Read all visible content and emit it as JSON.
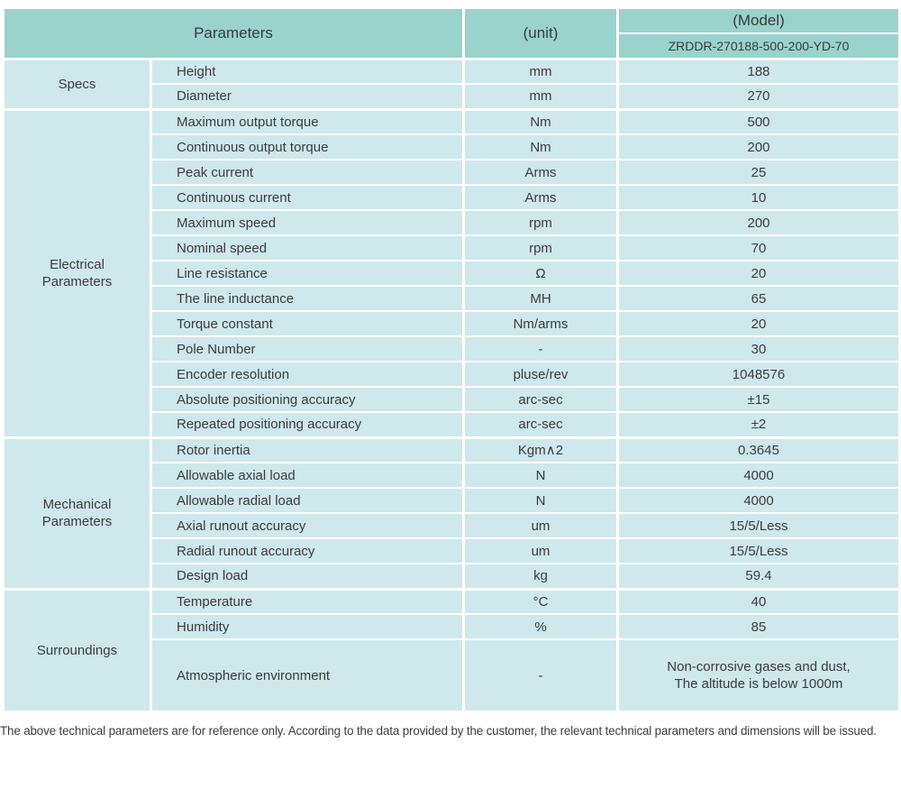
{
  "table": {
    "header": {
      "parameters_label": "Parameters",
      "unit_label": "(unit)",
      "model_label": "(Model)",
      "model_value": "ZRDDR-270188-500-200-YD-70"
    },
    "sections": [
      {
        "category": "Specs",
        "rows": [
          {
            "name": "Height",
            "unit": "mm",
            "value": "188"
          },
          {
            "name": "Diameter",
            "unit": "mm",
            "value": "270"
          }
        ]
      },
      {
        "category": "Electrical Parameters",
        "rows": [
          {
            "name": "Maximum output torque",
            "unit": "Nm",
            "value": "500"
          },
          {
            "name": "Continuous output torque",
            "unit": "Nm",
            "value": "200"
          },
          {
            "name": "Peak current",
            "unit": "Arms",
            "value": "25"
          },
          {
            "name": "Continuous current",
            "unit": "Arms",
            "value": "10"
          },
          {
            "name": "Maximum speed",
            "unit": "rpm",
            "value": "200"
          },
          {
            "name": "Nominal speed",
            "unit": "rpm",
            "value": "70"
          },
          {
            "name": "Line resistance",
            "unit": "Ω",
            "value": "20"
          },
          {
            "name": "The line inductance",
            "unit": "MH",
            "value": "65"
          },
          {
            "name": "Torque constant",
            "unit": "Nm/arms",
            "value": "20"
          },
          {
            "name": "Pole Number",
            "unit": "-",
            "value": "30"
          },
          {
            "name": "Encoder resolution",
            "unit": "pluse/rev",
            "value": "1048576"
          },
          {
            "name": "Absolute positioning accuracy",
            "unit": "arc-sec",
            "value": "±15"
          },
          {
            "name": "Repeated positioning accuracy",
            "unit": "arc-sec",
            "value": "±2"
          }
        ]
      },
      {
        "category": "Mechanical Parameters",
        "rows": [
          {
            "name": "Rotor inertia",
            "unit": "Kgm∧2",
            "value": "0.3645"
          },
          {
            "name": "Allowable axial load",
            "unit": "N",
            "value": "4000"
          },
          {
            "name": "Allowable radial load",
            "unit": "N",
            "value": "4000"
          },
          {
            "name": "Axial runout accuracy",
            "unit": "um",
            "value": "15/5/Less"
          },
          {
            "name": "Radial runout accuracy",
            "unit": "um",
            "value": "15/5/Less"
          },
          {
            "name": "Design load",
            "unit": "kg",
            "value": "59.4"
          }
        ]
      },
      {
        "category": "Surroundings",
        "rows": [
          {
            "name": "Temperature",
            "unit": "°C",
            "value": "40"
          },
          {
            "name": "Humidity",
            "unit": "%",
            "value": "85"
          },
          {
            "name": "Atmospheric environment",
            "unit": "-",
            "value": "Non-corrosive gases and dust,\nThe altitude is below 1000m"
          }
        ]
      }
    ],
    "footnote": "The above technical parameters are for reference only. According to the data provided by the customer, the relevant technical parameters and dimensions will be issued."
  },
  "colors": {
    "header_bg": "#9ad3cc",
    "row_bg": "#cee8ec",
    "separator": "#ffffff",
    "text": "#3c3c3c"
  }
}
